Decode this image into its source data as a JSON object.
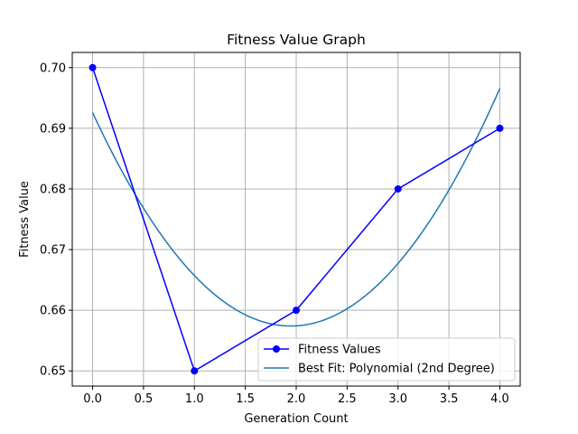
{
  "chart_data": {
    "type": "line",
    "title": "Fitness Value Graph",
    "xlabel": "Generation Count",
    "ylabel": "Fitness Value",
    "xlim": [
      -0.2,
      4.2
    ],
    "ylim": [
      0.6475,
      0.7025
    ],
    "xticks": [
      0.0,
      0.5,
      1.0,
      1.5,
      2.0,
      2.5,
      3.0,
      3.5,
      4.0
    ],
    "xtick_labels": [
      "0.0",
      "0.5",
      "1.0",
      "1.5",
      "2.0",
      "2.5",
      "3.0",
      "3.5",
      "4.0"
    ],
    "yticks": [
      0.65,
      0.66,
      0.67,
      0.68,
      0.69,
      0.7
    ],
    "ytick_labels": [
      "0.65",
      "0.66",
      "0.67",
      "0.68",
      "0.69",
      "0.70"
    ],
    "grid": true,
    "legend_position": "lower-right",
    "series": [
      {
        "name": "Fitness Values",
        "kind": "line-marker",
        "color": "#0000ff",
        "x": [
          0,
          1,
          2,
          3,
          4
        ],
        "values": [
          0.7,
          0.65,
          0.66,
          0.68,
          0.69
        ]
      },
      {
        "name": "Best Fit: Polynomial (2nd Degree)",
        "kind": "curve",
        "color": "#1f77b4",
        "coefficients": [
          0.0092857,
          -0.0361429,
          0.6925714
        ],
        "x_range": [
          0,
          4
        ]
      }
    ]
  }
}
